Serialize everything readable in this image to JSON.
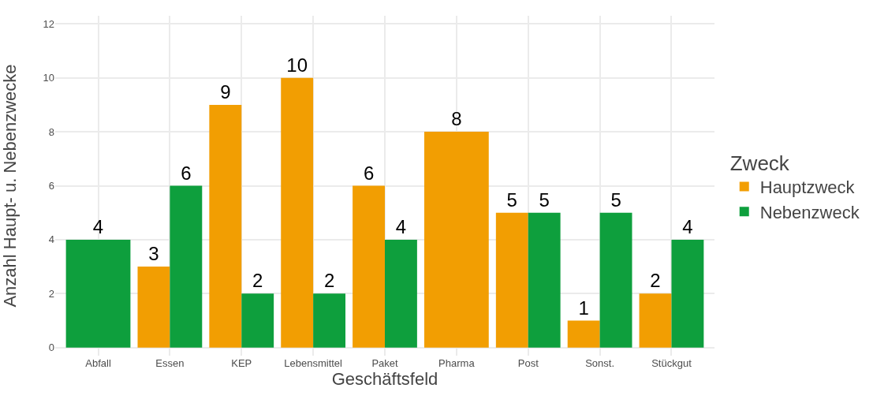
{
  "chart_data": {
    "type": "bar",
    "xlabel": "Geschäftsfeld",
    "ylabel": "Anzahl Haupt- u. Nebenzwecke",
    "legend_title": "Zweck",
    "categories": [
      "Abfall",
      "Essen",
      "KEP",
      "Lebensmittel",
      "Paket",
      "Pharma",
      "Post",
      "Sonst.",
      "Stückgut"
    ],
    "series": [
      {
        "name": "Hauptzweck",
        "color": "#f29e02",
        "values": [
          null,
          3,
          9,
          10,
          6,
          8,
          5,
          1,
          2
        ]
      },
      {
        "name": "Nebenzweck",
        "color": "#0e9f3d",
        "values": [
          4,
          6,
          2,
          2,
          4,
          null,
          5,
          5,
          4
        ]
      }
    ],
    "ylim": [
      -0.3,
      12.3
    ],
    "yticks": [
      0,
      2,
      4,
      6,
      8,
      10,
      12
    ],
    "grid": true,
    "legend": "right",
    "data_labels": true
  }
}
